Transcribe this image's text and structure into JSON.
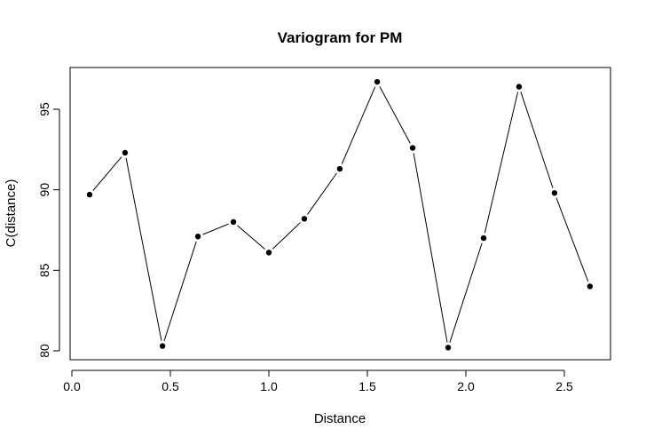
{
  "chart_data": {
    "type": "line",
    "title": "Variogram for PM",
    "xlabel": "Distance",
    "ylabel": "C(distance)",
    "xlim": [
      0.0,
      2.7
    ],
    "ylim": [
      80,
      97
    ],
    "x_ticks": [
      0.0,
      0.5,
      1.0,
      1.5,
      2.0,
      2.5
    ],
    "x_tick_labels": [
      "0.0",
      "0.5",
      "1.0",
      "1.5",
      "2.0",
      "2.5"
    ],
    "y_ticks": [
      80,
      85,
      90,
      95
    ],
    "y_tick_labels": [
      "80",
      "85",
      "90",
      "95"
    ],
    "grid": false,
    "legend": "none",
    "series": [
      {
        "x": [
          0.09,
          0.27,
          0.46,
          0.64,
          0.82,
          1.0,
          1.18,
          1.36,
          1.55,
          1.73,
          1.91,
          2.09,
          2.27,
          2.45,
          2.63
        ],
        "values": [
          89.7,
          92.3,
          80.3,
          87.1,
          88.0,
          86.1,
          88.2,
          91.3,
          96.7,
          92.6,
          80.2,
          87.0,
          96.4,
          89.8,
          84.0
        ]
      }
    ],
    "line_color": "#000000",
    "point_color": "#000000"
  }
}
